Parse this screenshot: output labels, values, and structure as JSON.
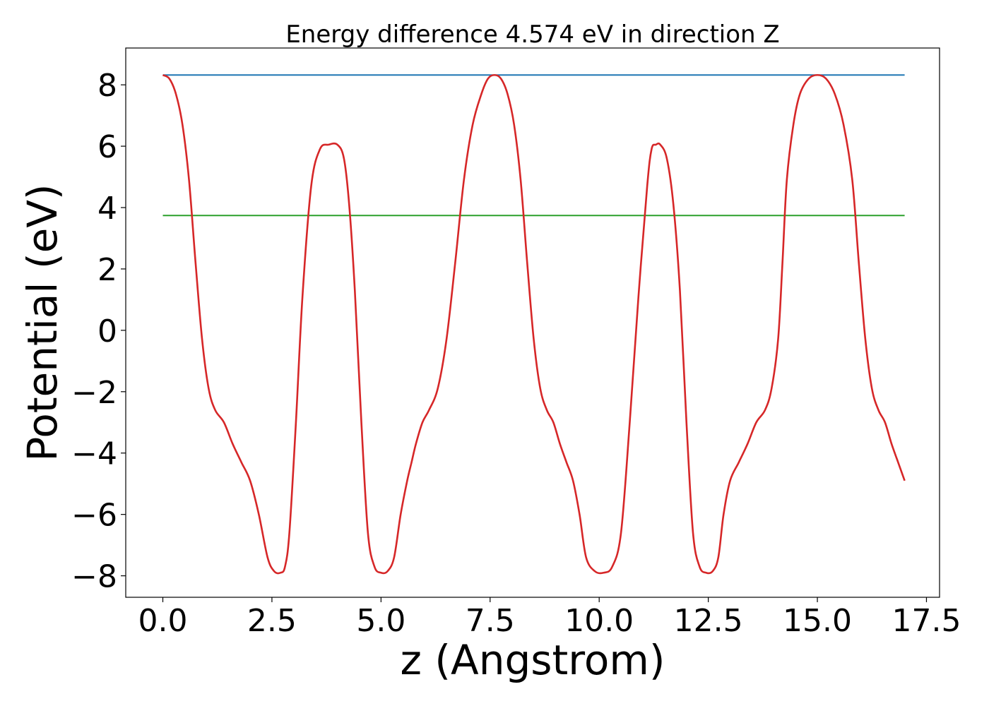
{
  "chart_data": {
    "type": "line",
    "title": "Energy difference 4.574 eV in direction Z",
    "xlabel": "z (Angstrom)",
    "ylabel": "Potential (eV)",
    "xlim": [
      -0.85,
      17.8
    ],
    "ylim": [
      -8.7,
      9.2
    ],
    "x_ticks": [
      0.0,
      2.5,
      5.0,
      7.5,
      10.0,
      12.5,
      15.0,
      17.5
    ],
    "x_tick_labels": [
      "0.0",
      "2.5",
      "5.0",
      "7.5",
      "10.0",
      "12.5",
      "15.0",
      "17.5"
    ],
    "y_ticks": [
      8,
      6,
      4,
      2,
      0,
      -2,
      -4,
      -6,
      -8
    ],
    "y_tick_labels": [
      "8",
      "6",
      "4",
      "2",
      "0",
      "−2",
      "−4",
      "−6",
      "−8"
    ],
    "grid": false,
    "series": [
      {
        "color": "#1f77b4",
        "x": [
          0.0,
          17.0
        ],
        "y": [
          8.32,
          8.32
        ]
      },
      {
        "color": "#2ca02c",
        "x": [
          0.0,
          17.0
        ],
        "y": [
          3.74,
          3.74
        ]
      },
      {
        "color": "#d62728",
        "x": [
          0.0,
          0.15,
          0.3,
          0.45,
          0.6,
          0.75,
          0.9,
          1.05,
          1.2,
          1.4,
          1.6,
          1.8,
          2.0,
          2.2,
          2.4,
          2.55,
          2.7,
          2.8,
          2.9,
          3.05,
          3.2,
          3.4,
          3.6,
          3.8,
          4.0,
          4.15,
          4.27,
          4.4,
          4.55,
          4.7,
          4.85,
          5.0,
          5.15,
          5.3,
          5.45,
          5.6,
          5.7,
          5.8,
          5.95,
          6.1,
          6.3,
          6.5,
          6.7,
          6.9,
          7.1,
          7.3,
          7.45,
          7.6,
          7.75,
          7.9,
          8.05,
          8.2,
          8.35,
          8.5,
          8.65,
          8.8,
          8.95,
          9.1,
          9.25,
          9.4,
          9.55,
          9.7,
          9.9,
          10.1,
          10.3,
          10.5,
          10.7,
          10.9,
          11.1,
          11.2,
          11.3,
          11.4,
          11.55,
          11.7,
          11.85,
          12.0,
          12.15,
          12.3,
          12.45,
          12.6,
          12.73,
          12.85,
          13.0,
          13.2,
          13.4,
          13.6,
          13.8,
          13.95,
          14.1,
          14.2,
          14.3,
          14.45,
          14.6,
          14.8,
          15.0,
          15.2,
          15.4,
          15.6,
          15.8,
          15.95,
          16.1,
          16.25,
          16.4,
          16.55,
          16.7,
          16.85,
          17.0
        ],
        "y": [
          8.32,
          8.2,
          7.7,
          6.7,
          4.9,
          2.2,
          -0.3,
          -1.9,
          -2.6,
          -3.0,
          -3.7,
          -4.3,
          -4.9,
          -6.0,
          -7.4,
          -7.85,
          -7.9,
          -7.7,
          -6.6,
          -3.0,
          1.1,
          4.7,
          5.9,
          6.05,
          6.05,
          5.6,
          4.1,
          1.3,
          -3.0,
          -6.6,
          -7.7,
          -7.9,
          -7.85,
          -7.4,
          -6.0,
          -4.9,
          -4.3,
          -3.7,
          -3.0,
          -2.6,
          -1.9,
          -0.3,
          2.2,
          4.9,
          6.7,
          7.7,
          8.2,
          8.32,
          8.2,
          7.7,
          6.7,
          4.9,
          2.2,
          -0.3,
          -1.9,
          -2.6,
          -3.0,
          -3.7,
          -4.3,
          -4.9,
          -6.0,
          -7.4,
          -7.85,
          -7.9,
          -7.7,
          -6.6,
          -3.0,
          1.1,
          4.7,
          5.9,
          6.05,
          6.05,
          5.6,
          4.1,
          1.3,
          -3.0,
          -6.6,
          -7.7,
          -7.9,
          -7.85,
          -7.4,
          -6.0,
          -4.9,
          -4.3,
          -3.7,
          -3.0,
          -2.6,
          -1.9,
          -0.3,
          2.2,
          4.9,
          6.7,
          7.7,
          8.2,
          8.32,
          8.2,
          7.7,
          6.7,
          4.9,
          2.2,
          -0.3,
          -1.9,
          -2.6,
          -3.0,
          -3.7,
          -4.3,
          -4.9
        ]
      }
    ]
  }
}
